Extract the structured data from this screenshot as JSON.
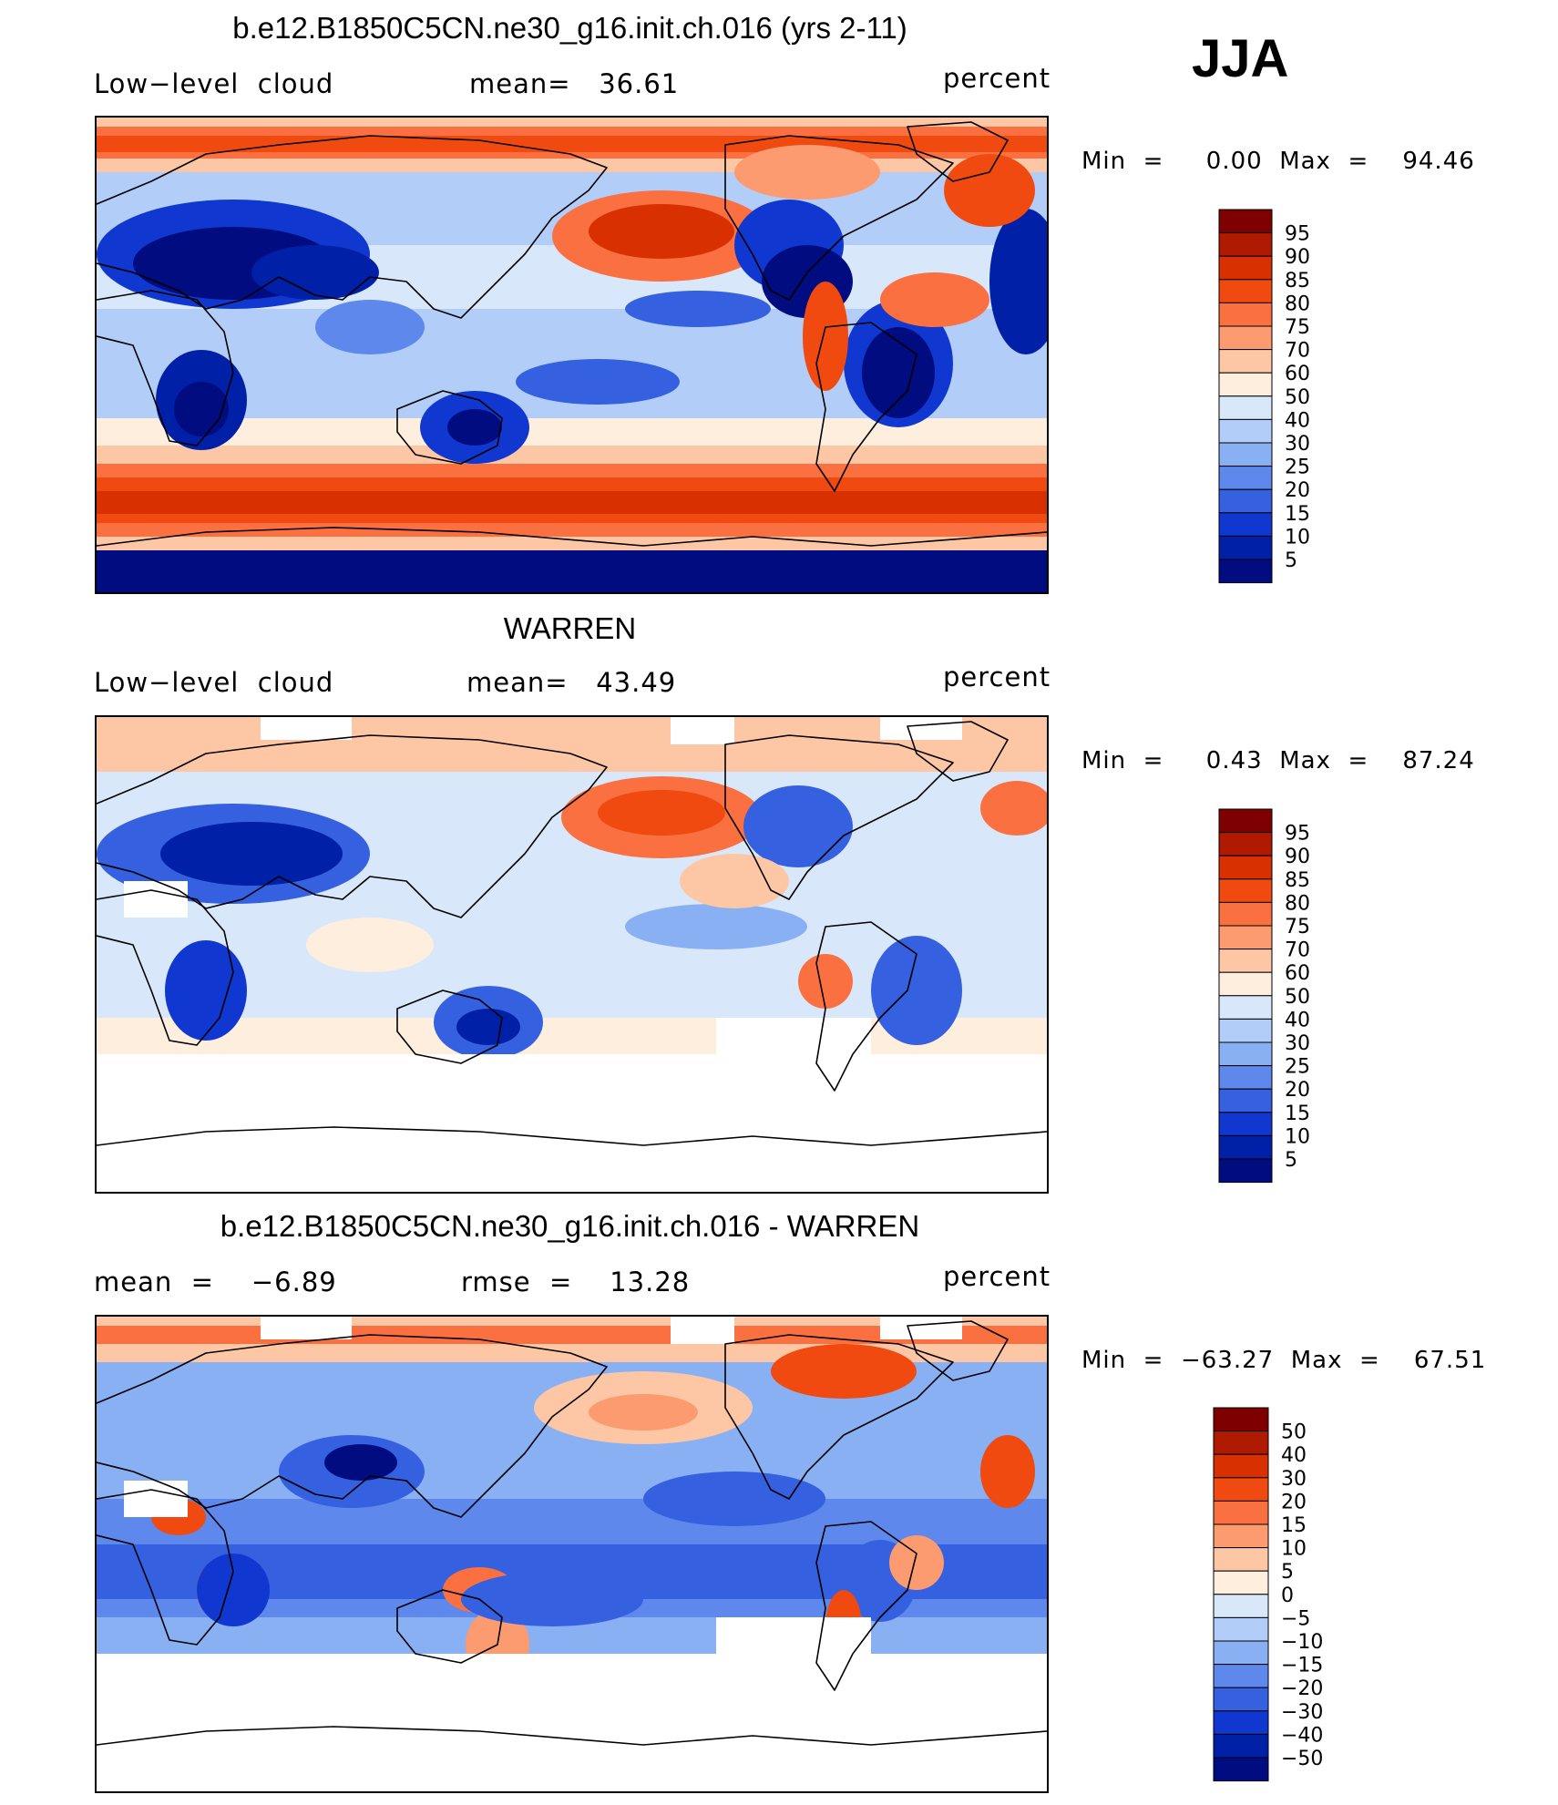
{
  "season": "JJA",
  "panels": [
    {
      "id": "model",
      "title": "b.e12.B1850C5CN.ne30_g16.init.ch.016 (yrs 2-11)",
      "left_label": "Low−level  cloud",
      "center_label": "mean=   36.61",
      "units": "percent",
      "minmax": "Min  =     0.00  Max  =    94.46",
      "colorbar_labels": [
        "95",
        "90",
        "85",
        "80",
        "75",
        "70",
        "60",
        "50",
        "40",
        "30",
        "25",
        "20",
        "15",
        "10",
        "5"
      ],
      "has_missing": false
    },
    {
      "id": "obs",
      "title": "WARREN",
      "left_label": "Low−level  cloud",
      "center_label": "mean=   43.49",
      "units": "percent",
      "minmax": "Min  =     0.43  Max  =    87.24",
      "colorbar_labels": [
        "95",
        "90",
        "85",
        "80",
        "75",
        "70",
        "60",
        "50",
        "40",
        "30",
        "25",
        "20",
        "15",
        "10",
        "5"
      ],
      "has_missing": true
    },
    {
      "id": "diff",
      "title": "b.e12.B1850C5CN.ne30_g16.init.ch.016 - WARREN",
      "left_label": "mean  =    −6.89",
      "center_label": "rmse  =    13.28",
      "units": "percent",
      "minmax": "Min  =  −63.27  Max  =    67.51",
      "colorbar_labels": [
        "50",
        "40",
        "30",
        "20",
        "15",
        "10",
        "5",
        "0",
        "−5",
        "−10",
        "−15",
        "−20",
        "−30",
        "−40",
        "−50"
      ],
      "has_missing": true
    }
  ],
  "colors": {
    "scale": [
      "#7f0000",
      "#b01a00",
      "#d83000",
      "#f04a10",
      "#fa7040",
      "#fc9a70",
      "#fdc6a4",
      "#feeedd",
      "#d8e8fa",
      "#b2cef8",
      "#8ab0f4",
      "#5e88ec",
      "#3560e0",
      "#1038d0",
      "#0020a8",
      "#000c80"
    ]
  }
}
